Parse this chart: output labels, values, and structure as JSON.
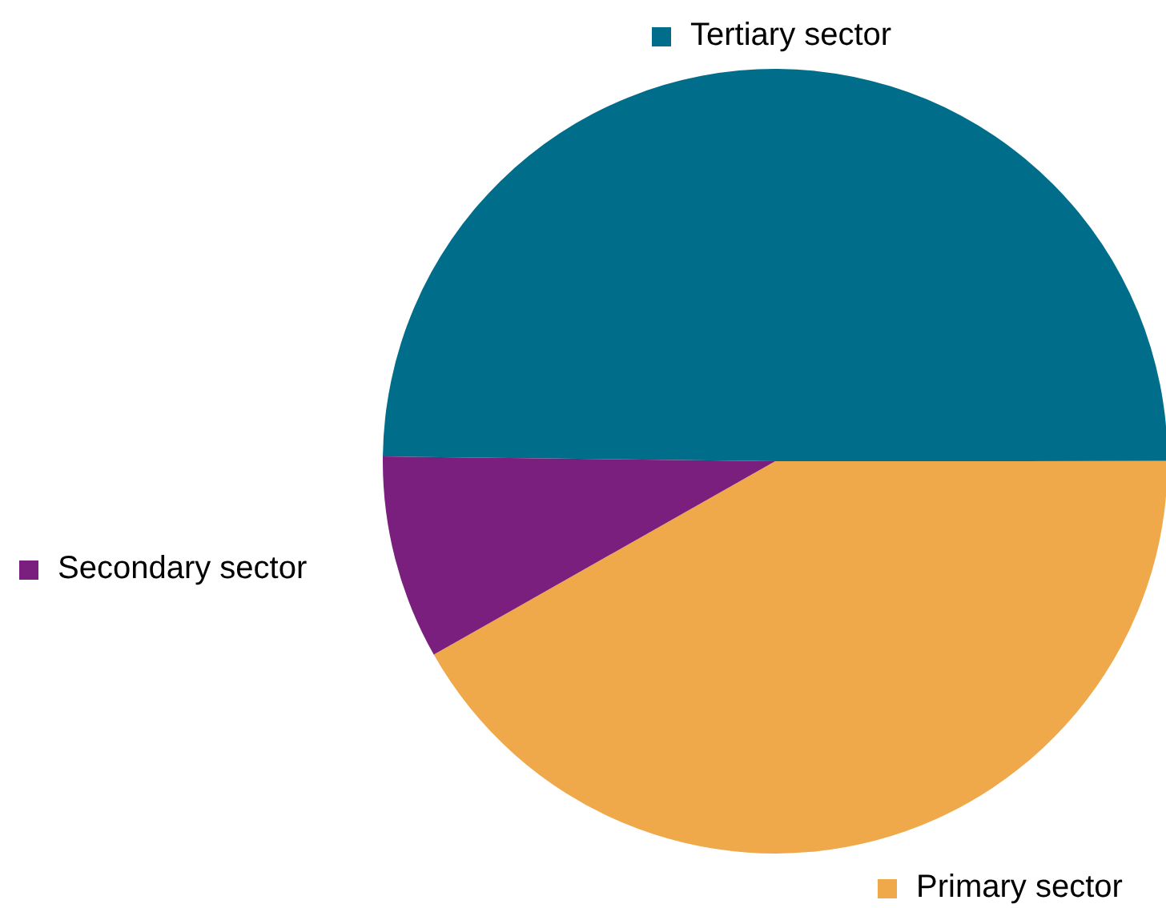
{
  "chart_data": {
    "type": "pie",
    "categories": [
      "Tertiary sector",
      "Primary sector",
      "Secondary sector"
    ],
    "values": [
      49.8,
      41.8,
      8.4
    ],
    "colors": [
      "#006e8a",
      "#efa84a",
      "#7a1f7d"
    ],
    "legend": "bottom left"
  }
}
